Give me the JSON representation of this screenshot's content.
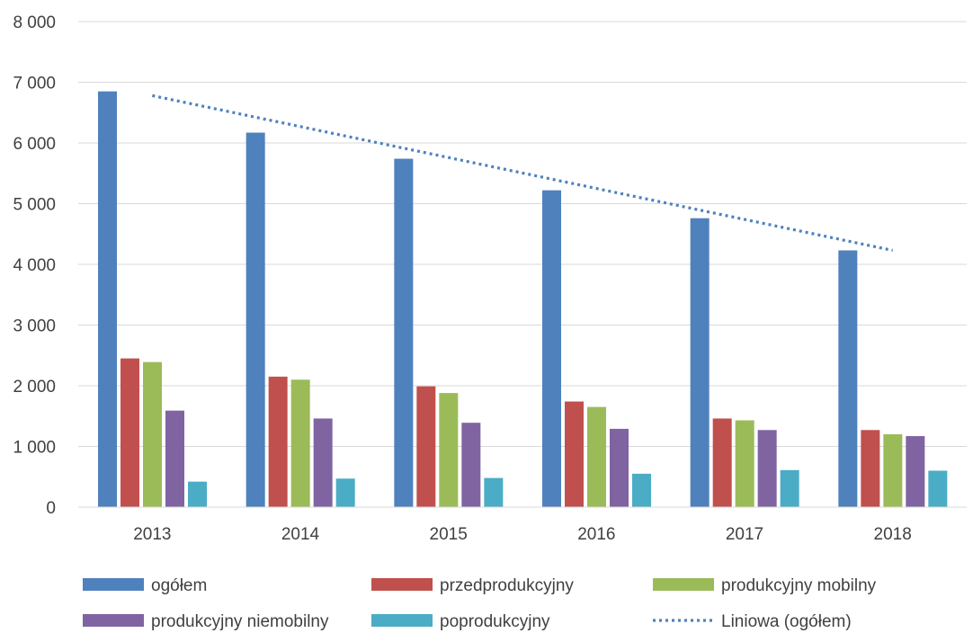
{
  "chart_data": {
    "type": "bar",
    "categories": [
      "2013",
      "2014",
      "2015",
      "2016",
      "2017",
      "2018"
    ],
    "series": [
      {
        "name": "ogółem",
        "color": "#4f81bd",
        "values": [
          6850,
          6170,
          5740,
          5220,
          4760,
          4230
        ]
      },
      {
        "name": "przedprodukcyjny",
        "color": "#c0504d",
        "values": [
          2450,
          2150,
          1990,
          1740,
          1460,
          1270
        ]
      },
      {
        "name": "produkcyjny mobilny",
        "color": "#9bbb59",
        "values": [
          2390,
          2100,
          1880,
          1650,
          1430,
          1200
        ]
      },
      {
        "name": "produkcyjny niemobilny",
        "color": "#8064a2",
        "values": [
          1590,
          1460,
          1390,
          1290,
          1270,
          1170
        ]
      },
      {
        "name": "poprodukcyjny",
        "color": "#4bacc6",
        "values": [
          420,
          470,
          480,
          550,
          610,
          600
        ]
      }
    ],
    "trendline": {
      "name": "Liniowa (ogółem)",
      "type": "linear",
      "color": "#4f81bd",
      "style": "dotted",
      "values": [
        6780,
        6270,
        5770,
        5270,
        4760,
        4230
      ]
    },
    "ylim": [
      0,
      8000
    ],
    "yticks": [
      0,
      1000,
      2000,
      3000,
      4000,
      5000,
      6000,
      7000,
      8000
    ],
    "ytick_labels": [
      "0",
      "1 000",
      "2 000",
      "3 000",
      "4 000",
      "5 000",
      "6 000",
      "7 000",
      "8 000"
    ],
    "grid": true,
    "legend_position": "bottom",
    "title": "",
    "xlabel": "",
    "ylabel": ""
  }
}
